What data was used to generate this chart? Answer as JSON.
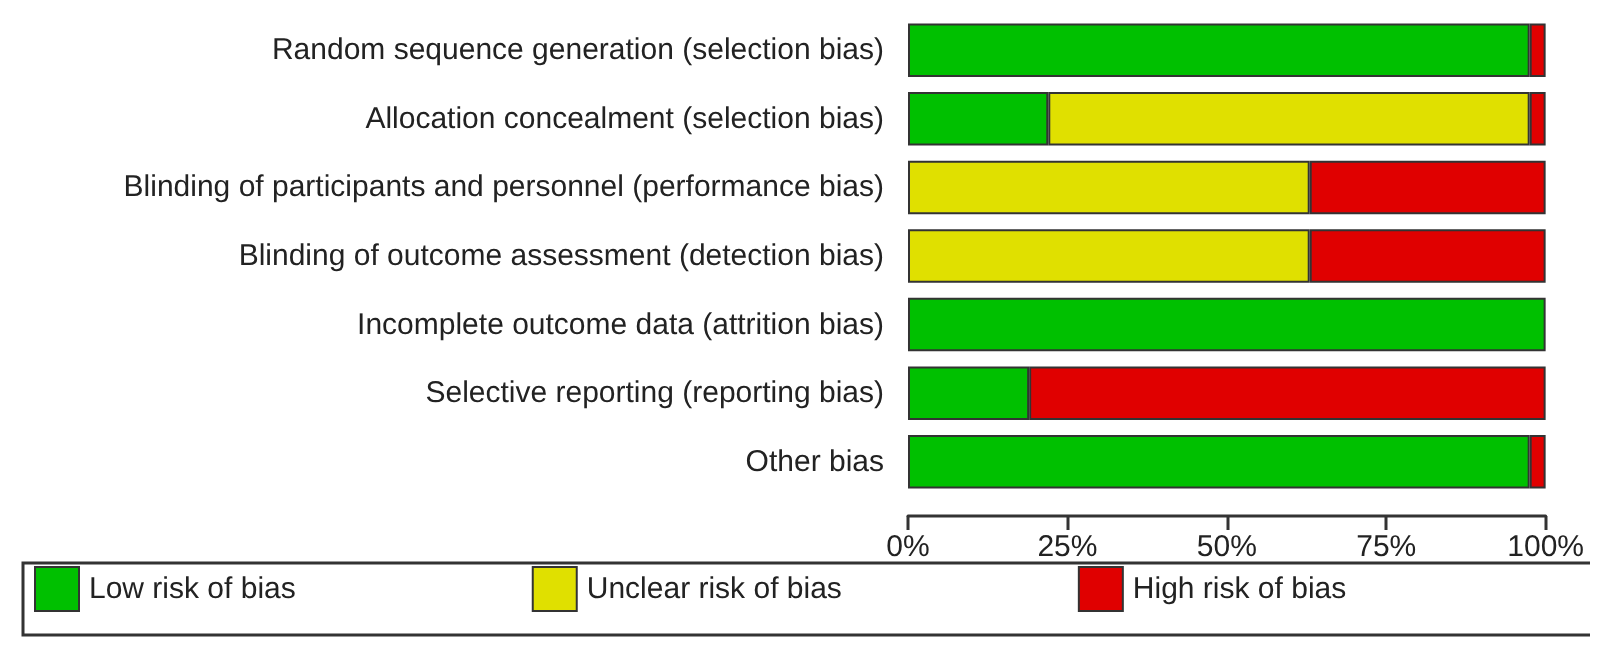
{
  "chart_data": {
    "type": "bar",
    "orientation": "horizontal",
    "stacked": true,
    "categories": [
      "Random sequence generation (selection bias)",
      "Allocation concealment (selection bias)",
      "Blinding of participants and personnel (performance bias)",
      "Blinding of outcome assessment (detection bias)",
      "Incomplete outcome data (attrition bias)",
      "Selective reporting (reporting bias)",
      "Other bias"
    ],
    "series": [
      {
        "name": "Low risk of bias",
        "color": "#00c000",
        "values": [
          97.5,
          22,
          0,
          0,
          100,
          19,
          97.5
        ]
      },
      {
        "name": "Unclear risk of bias",
        "color": "#e0e000",
        "values": [
          0,
          75.5,
          63,
          63,
          0,
          0,
          0
        ]
      },
      {
        "name": "High risk of bias",
        "color": "#e00000",
        "values": [
          2.5,
          2.5,
          37,
          37,
          0,
          81,
          2.5
        ]
      }
    ],
    "xlim": [
      0,
      100
    ],
    "xticks": [
      {
        "value": 0,
        "label": "0%"
      },
      {
        "value": 25,
        "label": "25%"
      },
      {
        "value": 50,
        "label": "50%"
      },
      {
        "value": 75,
        "label": "75%"
      },
      {
        "value": 100,
        "label": "100%"
      }
    ],
    "grid": false,
    "legend": "bottom"
  }
}
